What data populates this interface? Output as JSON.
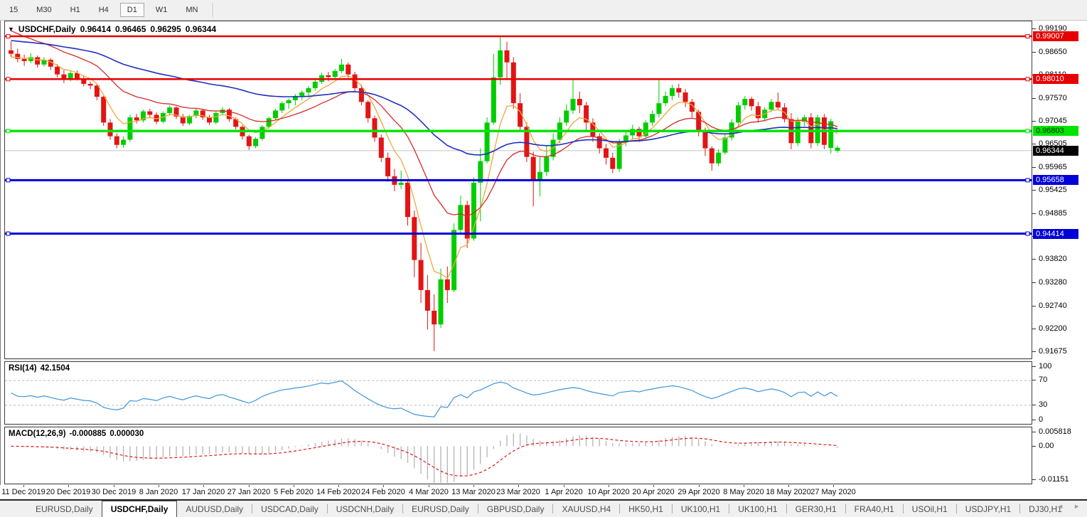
{
  "toolbar": {
    "timeframes": [
      {
        "label": "15",
        "active": false
      },
      {
        "label": "M30",
        "active": false
      },
      {
        "label": "H1",
        "active": false
      },
      {
        "label": "H4",
        "active": false
      },
      {
        "label": "D1",
        "active": true
      },
      {
        "label": "W1",
        "active": false
      },
      {
        "label": "MN",
        "active": false
      }
    ]
  },
  "icons": {
    "symbol_marker": "▼",
    "tab_scroll_left": "◄",
    "tab_scroll_right": "►"
  },
  "chart_data": {
    "type": "candlestick",
    "symbol_title": "USDCHF,Daily",
    "ohlc": {
      "open": "0.96414",
      "high": "0.96465",
      "low": "0.96295",
      "close": "0.96344"
    },
    "y_axis": {
      "max": 0.9919,
      "min": 0.91675,
      "ticks": [
        {
          "label": "0.99190",
          "value": 0.9919
        },
        {
          "label": "0.98650",
          "value": 0.9865
        },
        {
          "label": "0.98110",
          "value": 0.9811
        },
        {
          "label": "0.97570",
          "value": 0.9757
        },
        {
          "label": "0.97045",
          "value": 0.97045
        },
        {
          "label": "0.96505",
          "value": 0.96505
        },
        {
          "label": "0.95965",
          "value": 0.95965
        },
        {
          "label": "0.95425",
          "value": 0.95425
        },
        {
          "label": "0.94885",
          "value": 0.94885
        },
        {
          "label": "0.94360",
          "value": 0.9436
        },
        {
          "label": "0.93820",
          "value": 0.9382
        },
        {
          "label": "0.93280",
          "value": 0.9328
        },
        {
          "label": "0.92740",
          "value": 0.9274
        },
        {
          "label": "0.92200",
          "value": 0.922
        },
        {
          "label": "0.91675",
          "value": 0.91675
        }
      ]
    },
    "x_axis": {
      "labels": [
        "11 Dec 2019",
        "20 Dec 2019",
        "30 Dec 2019",
        "8 Jan 2020",
        "17 Jan 2020",
        "27 Jan 2020",
        "5 Feb 2020",
        "14 Feb 2020",
        "24 Feb 2020",
        "4 Mar 2020",
        "13 Mar 2020",
        "23 Mar 2020",
        "1 Apr 2020",
        "10 Apr 2020",
        "20 Apr 2020",
        "29 Apr 2020",
        "8 May 2020",
        "18 May 2020",
        "27 May 2020"
      ]
    },
    "colors": {
      "bull": "#00cd00",
      "bear": "#e21414",
      "background": "#ffffff"
    },
    "hlines": [
      {
        "label": "0.99007",
        "value": 0.99007,
        "color": "#e60000",
        "width": 2.5,
        "text_color": "#ffffff"
      },
      {
        "label": "0.98010",
        "value": 0.9801,
        "color": "#e60000",
        "width": 2.5,
        "text_color": "#ffffff"
      },
      {
        "label": "0.96803",
        "value": 0.96803,
        "color": "#00e400",
        "width": 3.5,
        "text_color": "#002900"
      },
      {
        "label": "0.95658",
        "value": 0.95658,
        "color": "#0000d8",
        "width": 3,
        "text_color": "#ffffff"
      },
      {
        "label": "0.94414",
        "value": 0.94414,
        "color": "#0000d8",
        "width": 3,
        "text_color": "#ffffff"
      }
    ],
    "current_price": {
      "label": "0.96344",
      "value": 0.96344,
      "line_color": "#c4c4c4",
      "box_bg": "#000000",
      "text_color": "#ffffff"
    },
    "moving_averages": [
      {
        "name": "ma-fast",
        "period": 6,
        "seed": 0.985,
        "color": "#efa73c",
        "width": 1.3
      },
      {
        "name": "ma-medium",
        "period": 18,
        "seed": 0.992,
        "color": "#d42a2a",
        "width": 1.3
      },
      {
        "name": "ma-slow",
        "period": 55,
        "seed": 0.9892,
        "color": "#1e2fbe",
        "width": 1.6
      }
    ],
    "candles": [
      [
        0.9868,
        0.9889,
        0.9852,
        0.986
      ],
      [
        0.986,
        0.9872,
        0.984,
        0.9848
      ],
      [
        0.9848,
        0.9858,
        0.9832,
        0.9843
      ],
      [
        0.9843,
        0.9861,
        0.9838,
        0.9852
      ],
      [
        0.9852,
        0.9856,
        0.9828,
        0.9835
      ],
      [
        0.9835,
        0.9852,
        0.983,
        0.9846
      ],
      [
        0.9846,
        0.985,
        0.9822,
        0.983
      ],
      [
        0.983,
        0.9836,
        0.9805,
        0.9812
      ],
      [
        0.9812,
        0.9822,
        0.9792,
        0.98
      ],
      [
        0.98,
        0.982,
        0.9796,
        0.9815
      ],
      [
        0.9815,
        0.9821,
        0.9798,
        0.9803
      ],
      [
        0.9803,
        0.981,
        0.9784,
        0.979
      ],
      [
        0.979,
        0.9795,
        0.9778,
        0.9786
      ],
      [
        0.9786,
        0.979,
        0.9752,
        0.976
      ],
      [
        0.976,
        0.9762,
        0.9692,
        0.97
      ],
      [
        0.97,
        0.9708,
        0.966,
        0.9668
      ],
      [
        0.9668,
        0.9675,
        0.964,
        0.9648
      ],
      [
        0.9648,
        0.9668,
        0.9641,
        0.966
      ],
      [
        0.966,
        0.9718,
        0.9655,
        0.9712
      ],
      [
        0.9712,
        0.972,
        0.9698,
        0.9705
      ],
      [
        0.9705,
        0.973,
        0.97,
        0.9726
      ],
      [
        0.9726,
        0.9732,
        0.971,
        0.9718
      ],
      [
        0.9718,
        0.9724,
        0.9696,
        0.9702
      ],
      [
        0.9702,
        0.9726,
        0.9698,
        0.9722
      ],
      [
        0.9722,
        0.974,
        0.9716,
        0.9735
      ],
      [
        0.9735,
        0.9738,
        0.9708,
        0.9714
      ],
      [
        0.9714,
        0.972,
        0.9692,
        0.9698
      ],
      [
        0.9698,
        0.9718,
        0.9694,
        0.9715
      ],
      [
        0.9715,
        0.9732,
        0.971,
        0.9728
      ],
      [
        0.9728,
        0.9731,
        0.9706,
        0.9712
      ],
      [
        0.9712,
        0.9718,
        0.9694,
        0.97
      ],
      [
        0.97,
        0.9726,
        0.9696,
        0.9722
      ],
      [
        0.9722,
        0.9736,
        0.9716,
        0.973
      ],
      [
        0.973,
        0.9734,
        0.9702,
        0.9708
      ],
      [
        0.9708,
        0.9712,
        0.9684,
        0.969
      ],
      [
        0.969,
        0.9694,
        0.966,
        0.9668
      ],
      [
        0.9668,
        0.9672,
        0.9636,
        0.9645
      ],
      [
        0.9645,
        0.9666,
        0.964,
        0.9662
      ],
      [
        0.9662,
        0.9694,
        0.9658,
        0.969
      ],
      [
        0.969,
        0.9714,
        0.9686,
        0.971
      ],
      [
        0.971,
        0.9732,
        0.9705,
        0.9728
      ],
      [
        0.9728,
        0.9749,
        0.9722,
        0.9745
      ],
      [
        0.9745,
        0.9756,
        0.9732,
        0.9752
      ],
      [
        0.9752,
        0.9766,
        0.974,
        0.9762
      ],
      [
        0.9762,
        0.9775,
        0.9752,
        0.977
      ],
      [
        0.977,
        0.9785,
        0.9758,
        0.978
      ],
      [
        0.978,
        0.98,
        0.9774,
        0.9795
      ],
      [
        0.9795,
        0.9816,
        0.979,
        0.981
      ],
      [
        0.981,
        0.9818,
        0.9796,
        0.9806
      ],
      [
        0.9806,
        0.9825,
        0.98,
        0.982
      ],
      [
        0.982,
        0.9848,
        0.9815,
        0.9835
      ],
      [
        0.9835,
        0.984,
        0.9804,
        0.9812
      ],
      [
        0.9812,
        0.9818,
        0.9772,
        0.978
      ],
      [
        0.978,
        0.9788,
        0.974,
        0.9748
      ],
      [
        0.9748,
        0.9752,
        0.97,
        0.971
      ],
      [
        0.971,
        0.9716,
        0.9655,
        0.9665
      ],
      [
        0.9665,
        0.9672,
        0.9608,
        0.9618
      ],
      [
        0.9618,
        0.963,
        0.9562,
        0.9575
      ],
      [
        0.9575,
        0.9592,
        0.954,
        0.9555
      ],
      [
        0.9555,
        0.9588,
        0.9545,
        0.956
      ],
      [
        0.956,
        0.9565,
        0.946,
        0.948
      ],
      [
        0.948,
        0.9495,
        0.934,
        0.938
      ],
      [
        0.938,
        0.942,
        0.928,
        0.931
      ],
      [
        0.931,
        0.9345,
        0.9218,
        0.9262
      ],
      [
        0.9262,
        0.93,
        0.9168,
        0.923
      ],
      [
        0.923,
        0.936,
        0.9222,
        0.9335
      ],
      [
        0.9335,
        0.9365,
        0.928,
        0.931
      ],
      [
        0.931,
        0.9465,
        0.9305,
        0.945
      ],
      [
        0.945,
        0.953,
        0.944,
        0.9508
      ],
      [
        0.9508,
        0.9518,
        0.9408,
        0.943
      ],
      [
        0.943,
        0.9572,
        0.9425,
        0.956
      ],
      [
        0.956,
        0.964,
        0.947,
        0.961
      ],
      [
        0.961,
        0.9712,
        0.9605,
        0.97
      ],
      [
        0.97,
        0.986,
        0.9695,
        0.9805
      ],
      [
        0.9805,
        0.9901,
        0.9788,
        0.9868
      ],
      [
        0.9868,
        0.9888,
        0.98,
        0.984
      ],
      [
        0.984,
        0.9852,
        0.9732,
        0.9745
      ],
      [
        0.9745,
        0.9768,
        0.968,
        0.969
      ],
      [
        0.969,
        0.97,
        0.9608,
        0.962
      ],
      [
        0.962,
        0.9632,
        0.9505,
        0.9565
      ],
      [
        0.9565,
        0.962,
        0.9528,
        0.9585
      ],
      [
        0.9585,
        0.9645,
        0.9575,
        0.962
      ],
      [
        0.962,
        0.9675,
        0.9612,
        0.966
      ],
      [
        0.966,
        0.9712,
        0.9652,
        0.97
      ],
      [
        0.97,
        0.9742,
        0.9692,
        0.9728
      ],
      [
        0.9728,
        0.98,
        0.972,
        0.9755
      ],
      [
        0.9755,
        0.9772,
        0.9722,
        0.974
      ],
      [
        0.974,
        0.9748,
        0.9682,
        0.97
      ],
      [
        0.97,
        0.971,
        0.9655,
        0.9668
      ],
      [
        0.9668,
        0.9675,
        0.9628,
        0.964
      ],
      [
        0.964,
        0.965,
        0.9602,
        0.9618
      ],
      [
        0.9618,
        0.963,
        0.9582,
        0.9592
      ],
      [
        0.9592,
        0.9662,
        0.9585,
        0.9655
      ],
      [
        0.9655,
        0.968,
        0.9645,
        0.967
      ],
      [
        0.967,
        0.9695,
        0.966,
        0.9685
      ],
      [
        0.9685,
        0.969,
        0.9655,
        0.9668
      ],
      [
        0.9668,
        0.9706,
        0.9662,
        0.97
      ],
      [
        0.97,
        0.9728,
        0.9692,
        0.972
      ],
      [
        0.972,
        0.9802,
        0.9712,
        0.9745
      ],
      [
        0.9745,
        0.9772,
        0.9738,
        0.9762
      ],
      [
        0.9762,
        0.9788,
        0.9752,
        0.978
      ],
      [
        0.978,
        0.979,
        0.9758,
        0.977
      ],
      [
        0.977,
        0.9778,
        0.9736,
        0.9748
      ],
      [
        0.9748,
        0.9755,
        0.9712,
        0.9725
      ],
      [
        0.9725,
        0.973,
        0.9668,
        0.968
      ],
      [
        0.968,
        0.9688,
        0.9622,
        0.964
      ],
      [
        0.964,
        0.9645,
        0.9588,
        0.9605
      ],
      [
        0.9605,
        0.9638,
        0.9598,
        0.963
      ],
      [
        0.963,
        0.9672,
        0.9625,
        0.9665
      ],
      [
        0.9665,
        0.9708,
        0.9658,
        0.97
      ],
      [
        0.97,
        0.9748,
        0.9694,
        0.974
      ],
      [
        0.974,
        0.9762,
        0.973,
        0.9755
      ],
      [
        0.9755,
        0.976,
        0.9728,
        0.9738
      ],
      [
        0.9738,
        0.9748,
        0.97,
        0.971
      ],
      [
        0.971,
        0.9736,
        0.9702,
        0.973
      ],
      [
        0.973,
        0.9755,
        0.9724,
        0.9748
      ],
      [
        0.9748,
        0.977,
        0.973,
        0.9735
      ],
      [
        0.9735,
        0.9745,
        0.97,
        0.9708
      ],
      [
        0.9708,
        0.9722,
        0.9638,
        0.9652
      ],
      [
        0.9652,
        0.9712,
        0.9645,
        0.9702
      ],
      [
        0.9702,
        0.9718,
        0.9692,
        0.9712
      ],
      [
        0.9712,
        0.9722,
        0.964,
        0.9652
      ],
      [
        0.9652,
        0.9718,
        0.9645,
        0.9712
      ],
      [
        0.9712,
        0.972,
        0.9638,
        0.9648
      ],
      [
        0.9641,
        0.9709,
        0.9628,
        0.9703
      ],
      [
        0.96414,
        0.96465,
        0.96295,
        0.96344,
        1
      ]
    ]
  },
  "rsi": {
    "label": "RSI(14)",
    "value": "42.1504",
    "period": 14,
    "line_color": "#3e96dc",
    "levels": [
      70,
      30
    ],
    "ticks": [
      {
        "label": "100",
        "value": 100
      },
      {
        "label": "70",
        "value": 70
      },
      {
        "label": "30",
        "value": 30
      },
      {
        "label": "0",
        "value": 0
      }
    ]
  },
  "macd": {
    "label": "MACD(12,26,9)",
    "value_macd": "-0.000885",
    "value_signal": "0.000030",
    "fast": 12,
    "slow": 26,
    "signal": 9,
    "hist_color": "#b4b4b4",
    "signal_color": "#e01414",
    "max": 0.005818,
    "min": -0.01151,
    "ticks": [
      {
        "label": "0.005818",
        "value": 0.005818
      },
      {
        "label": "0.00",
        "value": 0
      },
      {
        "label": "-0.01151",
        "value": -0.01151
      }
    ]
  },
  "tabs": {
    "items": [
      {
        "label": "EURUSD,Daily",
        "active": false
      },
      {
        "label": "USDCHF,Daily",
        "active": true
      },
      {
        "label": "AUDUSD,Daily",
        "active": false
      },
      {
        "label": "USDCAD,Daily",
        "active": false
      },
      {
        "label": "USDCNH,Daily",
        "active": false
      },
      {
        "label": "EURUSD,Daily",
        "active": false
      },
      {
        "label": "GBPUSD,Daily",
        "active": false
      },
      {
        "label": "XAUUSD,H4",
        "active": false
      },
      {
        "label": "HK50,H1",
        "active": false
      },
      {
        "label": "UK100,H1",
        "active": false
      },
      {
        "label": "UK100,H1",
        "active": false
      },
      {
        "label": "GER30,H1",
        "active": false
      },
      {
        "label": "FRA40,H1",
        "active": false
      },
      {
        "label": "USOil,H1",
        "active": false
      },
      {
        "label": "USDJPY,H1",
        "active": false
      },
      {
        "label": "DJ30,H1",
        "active": false
      }
    ]
  }
}
